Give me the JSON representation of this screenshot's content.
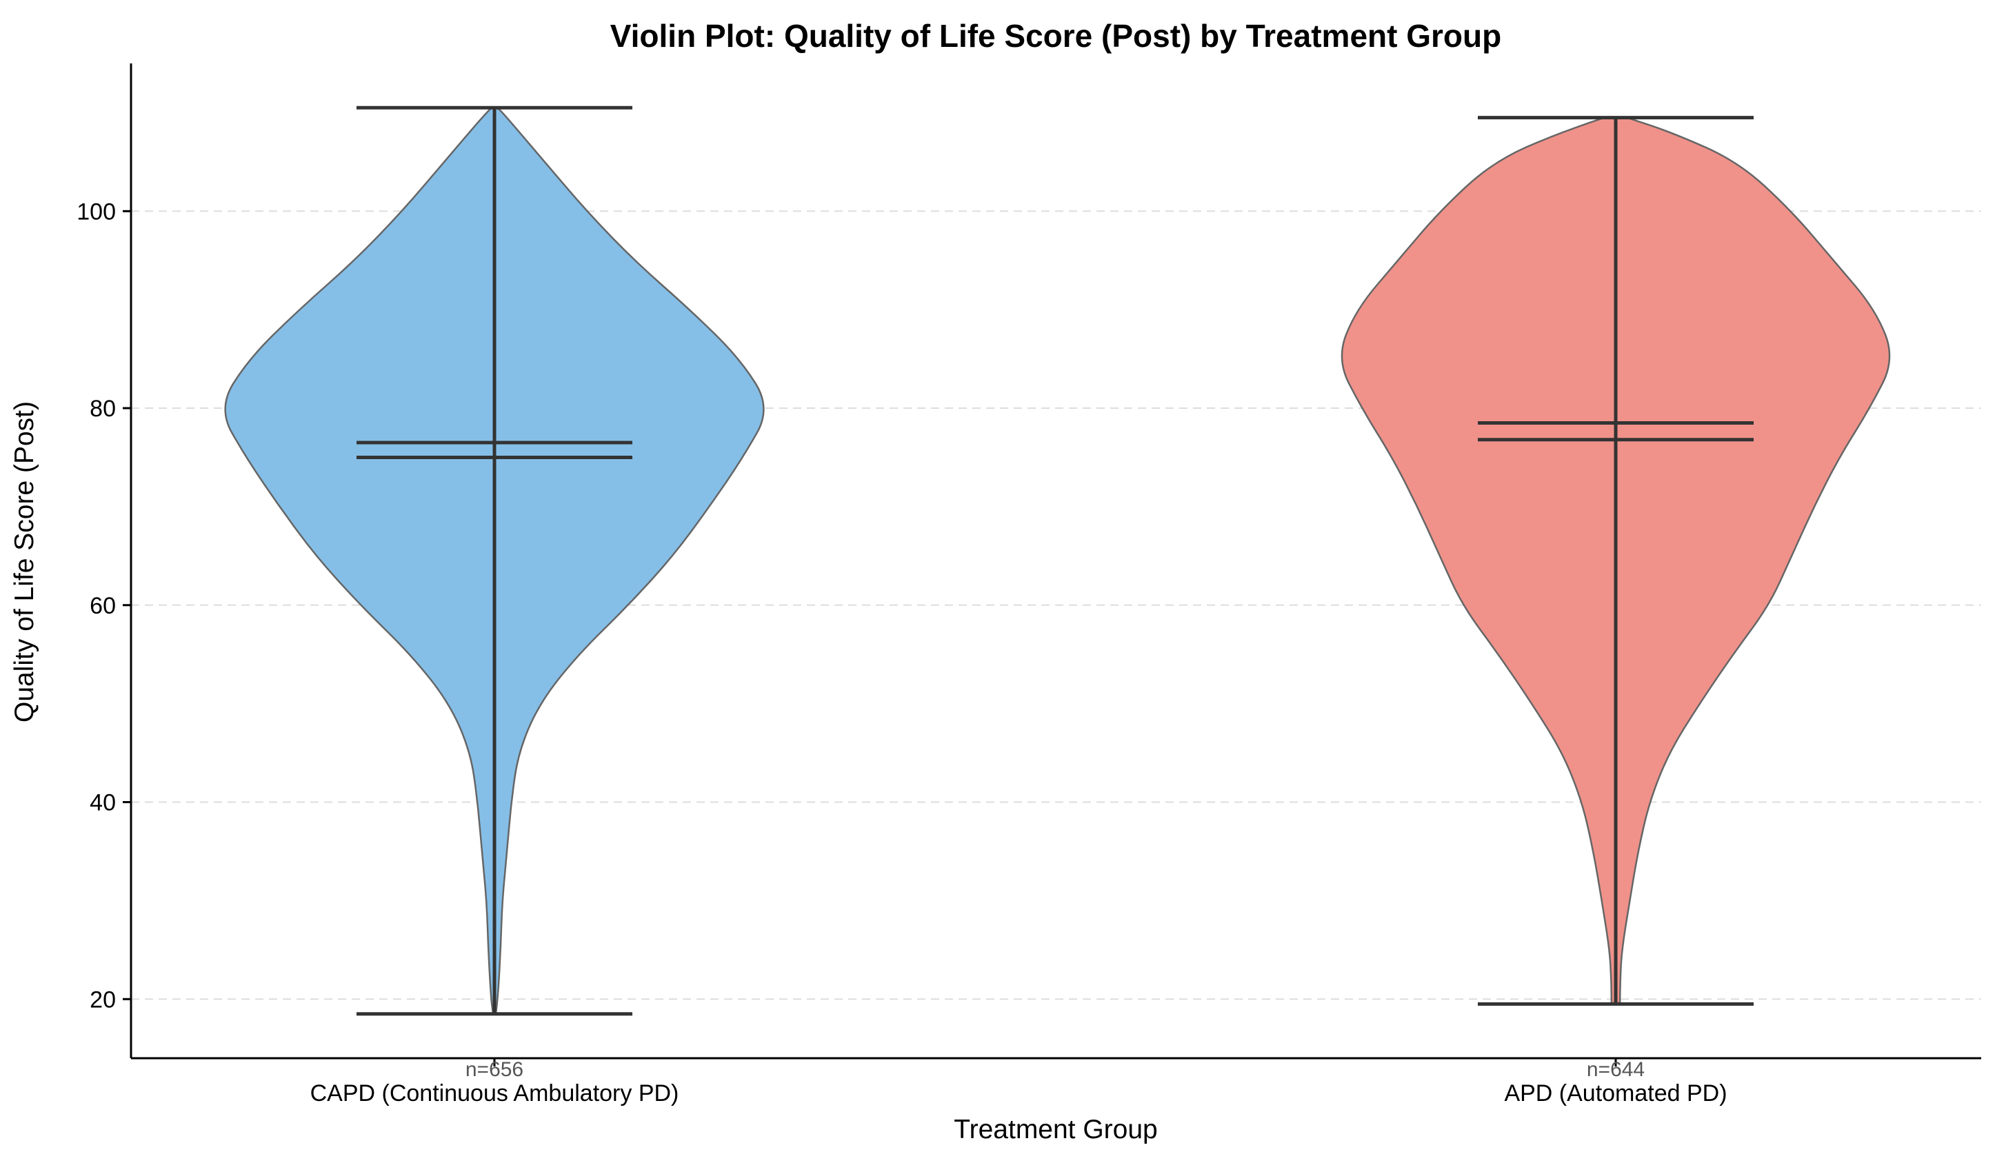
{
  "chart_data": {
    "type": "violin",
    "title": "Violin Plot: Quality of Life Score (Post) by Treatment Group",
    "xlabel": "Treatment Group",
    "ylabel": "Quality of Life Score (Post)",
    "ylim": [
      14,
      115
    ],
    "yticks": [
      "20",
      "40",
      "60",
      "80",
      "100"
    ],
    "grid": "horizontal dashed",
    "groups": [
      {
        "category": "CAPD (Continuous Ambulatory PD)",
        "n_label": "n=656",
        "color": "#85bfe8",
        "min": 18.5,
        "max": 110.5,
        "mean": 76.5,
        "median": 75.0,
        "density": [
          [
            18.5,
            0.005
          ],
          [
            20,
            0.012
          ],
          [
            25,
            0.022
          ],
          [
            30,
            0.028
          ],
          [
            35,
            0.045
          ],
          [
            40,
            0.06
          ],
          [
            45,
            0.085
          ],
          [
            50,
            0.16
          ],
          [
            55,
            0.3
          ],
          [
            60,
            0.48
          ],
          [
            65,
            0.64
          ],
          [
            70,
            0.77
          ],
          [
            75,
            0.89
          ],
          [
            80,
            0.99
          ],
          [
            85,
            0.88
          ],
          [
            90,
            0.7
          ],
          [
            95,
            0.5
          ],
          [
            100,
            0.33
          ],
          [
            105,
            0.18
          ],
          [
            110,
            0.03
          ],
          [
            110.5,
            0.01
          ]
        ]
      },
      {
        "category": "APD (Automated PD)",
        "n_label": "n=644",
        "color": "#f0928a",
        "min": 19.5,
        "max": 109.5,
        "mean": 78.5,
        "median": 76.8,
        "density": [
          [
            19.5,
            0.015
          ],
          [
            22,
            0.016
          ],
          [
            25,
            0.022
          ],
          [
            30,
            0.05
          ],
          [
            35,
            0.08
          ],
          [
            40,
            0.12
          ],
          [
            45,
            0.19
          ],
          [
            50,
            0.3
          ],
          [
            55,
            0.42
          ],
          [
            60,
            0.55
          ],
          [
            65,
            0.63
          ],
          [
            70,
            0.71
          ],
          [
            75,
            0.8
          ],
          [
            80,
            0.91
          ],
          [
            85,
            1.0
          ],
          [
            90,
            0.93
          ],
          [
            95,
            0.78
          ],
          [
            100,
            0.63
          ],
          [
            105,
            0.44
          ],
          [
            108,
            0.2
          ],
          [
            109.5,
            0.04
          ]
        ]
      }
    ]
  }
}
